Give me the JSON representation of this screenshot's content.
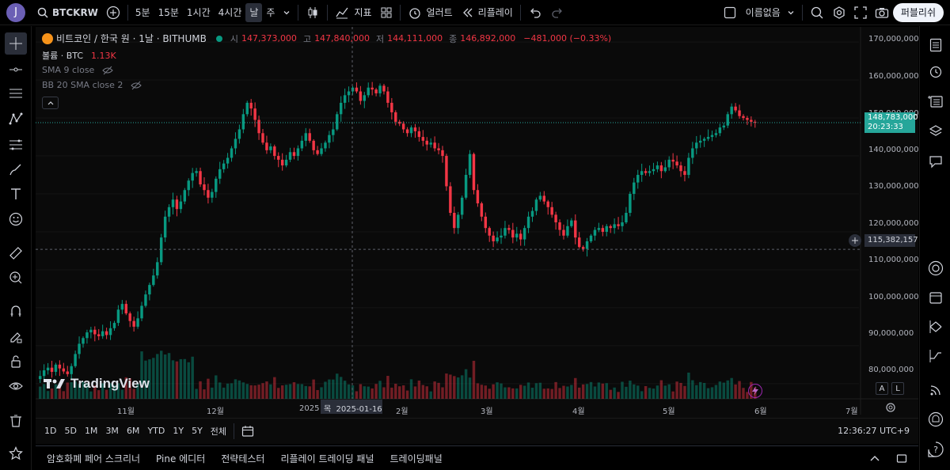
{
  "topbar": {
    "avatar": "J",
    "symbol": "BTCKRW",
    "timeframes": [
      "5분",
      "15분",
      "1시간",
      "4시간",
      "날",
      "주"
    ],
    "active_timeframe": "날",
    "indicators_label": "지표",
    "alert_label": "얼러트",
    "replay_label": "리플레이",
    "layout_name": "이름없음",
    "publish_label": "퍼블리쉬"
  },
  "legend": {
    "title": "비트코인 / 한국 원 · 1날 · BITHUMB",
    "open_label": "시",
    "open": "147,373,000",
    "high_label": "고",
    "high": "147,840,000",
    "low_label": "저",
    "low": "144,111,000",
    "close_label": "종",
    "close": "146,892,000",
    "change": "−481,000 (−0.33%)",
    "volume_label": "볼륨 · BTC",
    "volume": "1.13K",
    "sma": "SMA 9 close",
    "bb": "BB 20 SMA close 2"
  },
  "price_axis": {
    "ticks": [
      "170,000,000",
      "160,000,000",
      "150,000,000",
      "140,000,000",
      "130,000,000",
      "120,000,000",
      "110,000,000",
      "100,000,000",
      "90,000,000",
      "80,000,000"
    ],
    "current_price": "148,783,000",
    "countdown": "20:23:33",
    "crosshair_price": "115,382,157",
    "auto_label": "A",
    "log_label": "L"
  },
  "time_axis": {
    "labels": [
      "11월",
      "12월",
      "2025",
      "2월",
      "3월",
      "4월",
      "5월",
      "6월",
      "7월"
    ],
    "crosshair_date": "목  2025-01-16"
  },
  "watermark": "TradingView",
  "range_bar": {
    "ranges": [
      "1D",
      "5D",
      "1M",
      "3M",
      "6M",
      "YTD",
      "1Y",
      "5Y",
      "전체"
    ],
    "clock": "12:36:27 UTC+9"
  },
  "bottom_panel": {
    "tabs": [
      "암호화폐 페어 스크리너",
      "Pine 에디터",
      "전략테스터",
      "리플레이 트레이딩 패널",
      "트레이딩패널"
    ]
  },
  "colors": {
    "up": "#089981",
    "down": "#f23645",
    "price_badge": "#26a69a"
  },
  "chart_data": {
    "type": "candlestick",
    "title": "비트코인 / 한국 원 · 1날 · BITHUMB",
    "ylim": [
      76000000,
      174000000
    ],
    "x_labels": [
      "11월",
      "12월",
      "2025",
      "2월",
      "3월",
      "4월",
      "5월",
      "6월",
      "7월"
    ],
    "closes": [
      82.0,
      83.5,
      84.2,
      83.1,
      85.0,
      84.0,
      83.2,
      82.5,
      84.6,
      87.8,
      90.5,
      92.0,
      93.5,
      94.2,
      93.0,
      92.5,
      93.8,
      92.8,
      94.6,
      96.0,
      99.5,
      101.0,
      98.5,
      96.5,
      95.0,
      97.2,
      100.5,
      103.5,
      106.0,
      108.5,
      112.0,
      118.5,
      124.0,
      126.5,
      128.5,
      126.0,
      128.0,
      131.0,
      133.5,
      135.5,
      136.0,
      132.5,
      131.0,
      129.0,
      130.5,
      134.0,
      136.5,
      138.0,
      139.5,
      142.0,
      144.5,
      147.0,
      151.0,
      154.0,
      152.5,
      149.5,
      146.0,
      143.5,
      141.5,
      142.5,
      140.0,
      139.0,
      137.5,
      139.0,
      141.0,
      140.0,
      142.0,
      144.0,
      146.0,
      144.0,
      141.5,
      140.5,
      142.0,
      143.5,
      145.5,
      147.0,
      151.0,
      154.0,
      156.0,
      157.0,
      158.0,
      157.0,
      154.5,
      156.0,
      158.0,
      157.5,
      156.5,
      158.5,
      157.0,
      154.0,
      151.5,
      149.0,
      148.5,
      147.0,
      146.0,
      147.5,
      146.5,
      145.0,
      144.0,
      143.0,
      143.5,
      142.0,
      141.5,
      140.0,
      132.0,
      125.0,
      121.0,
      124.5,
      129.0,
      135.0,
      140.5,
      131.0,
      127.5,
      124.0,
      121.0,
      119.0,
      117.5,
      118.5,
      119.0,
      121.0,
      120.5,
      118.5,
      119.5,
      118.0,
      121.0,
      124.0,
      125.5,
      128.5,
      129.5,
      128.0,
      126.5,
      124.5,
      122.5,
      120.5,
      119.0,
      121.5,
      123.0,
      118.5,
      116.0,
      115.5,
      117.5,
      119.0,
      120.5,
      121.0,
      120.0,
      121.5,
      121.0,
      122.0,
      121.5,
      122.5,
      125.0,
      130.0,
      133.0,
      135.0,
      136.0,
      135.5,
      136.0,
      136.5,
      137.5,
      136.0,
      137.0,
      139.0,
      138.5,
      137.5,
      136.0,
      135.0,
      139.5,
      142.0,
      143.5,
      144.0,
      144.5,
      145.0,
      145.5,
      146.0,
      147.5,
      148.0,
      151.0,
      153.0,
      152.0,
      150.5,
      150.0,
      149.5,
      149.0,
      148.8
    ]
  }
}
